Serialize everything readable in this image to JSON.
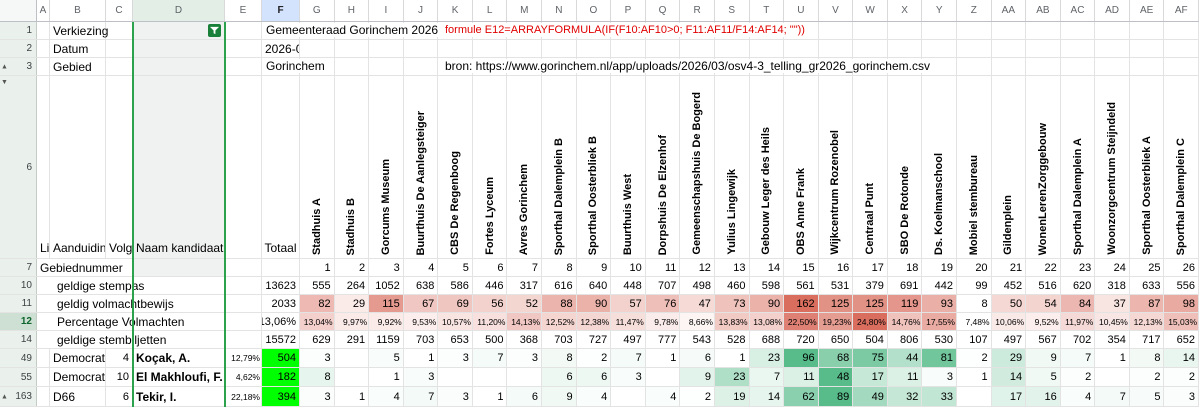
{
  "sheet": {
    "columns": [
      "A",
      "B",
      "C",
      "D",
      "E",
      "F",
      "G",
      "H",
      "I",
      "J",
      "K",
      "L",
      "M",
      "N",
      "O",
      "P",
      "Q",
      "R",
      "S",
      "T",
      "U",
      "V",
      "W",
      "X",
      "Y",
      "Z",
      "AA",
      "AB",
      "AC",
      "AD",
      "AE",
      "AF"
    ],
    "selected_column": "F",
    "filtered_column": "D",
    "selected_cell": "F12",
    "visible_rows": [
      "1",
      "2",
      "3",
      "6",
      "7",
      "10",
      "11",
      "12",
      "14",
      "49",
      "55",
      "163"
    ]
  },
  "meta": {
    "verkiezing_label": "Verkiezing",
    "verkiezing_value": "Gemeenteraad Gorinchem 2026",
    "formula_note": "formule E12=ARRAYFORMULA(IF(F10:AF10>0; F11:AF11/F14:AF14; \"\"))",
    "datum_label": "Datum",
    "datum_value": "2026-0",
    "gebied_label": "Gebied",
    "gebied_value": "Gorinchem",
    "bron_note": "bron: https://www.gorinchem.nl/app/uploads/2026/03/osv4-3_telling_gr2026_gorinchem.csv"
  },
  "header_labels": {
    "lijst": "Li",
    "aanduiding": "Aanduidin",
    "volgnummer": "Volg",
    "naam": "Naam kandidaat",
    "totaal": "Totaal"
  },
  "stations": [
    "Stadhuis A",
    "Stadhuis B",
    "Gorcums Museum",
    "Buurthuis De Aanlegsteiger",
    "CBS De Regenboog",
    "Fortes Lyceum",
    "Avres Gorinchem",
    "Sporthal Dalemplein B",
    "Sporthal Oosterbliek B",
    "Buurthuis West",
    "Dorpshuis De Elzenhof",
    "Gemeenschapshuis De Bogerd",
    "Yulius Lingewijk",
    "Gebouw Leger des Heils",
    "OBS Anne Frank",
    "Wijkcentrum Rozenobel",
    "Centraal Punt",
    "SBO De Rotonde",
    "Ds. Koelmanschool",
    "Mobiel stembureau",
    "Gildenplein",
    "WonenLerenZorggebouw",
    "Sporthal Dalemplein A",
    "Woonzorgcentrum Steijndeld",
    "Sporthal Oosterbliek A",
    "Sporthal Dalemplein C"
  ],
  "gebiednummer": {
    "label": "Gebiednummer",
    "numbers": [
      1,
      2,
      3,
      4,
      5,
      6,
      7,
      8,
      9,
      10,
      11,
      12,
      13,
      14,
      15,
      16,
      17,
      18,
      19,
      20,
      21,
      22,
      23,
      24,
      25,
      26
    ]
  },
  "stat_rows": [
    {
      "row": "10",
      "label": "geldige stempas",
      "total": "13623",
      "heat": "none",
      "small": false,
      "values": [
        555,
        264,
        1052,
        638,
        586,
        446,
        317,
        616,
        640,
        448,
        707,
        498,
        460,
        598,
        561,
        531,
        379,
        691,
        442,
        99,
        452,
        516,
        620,
        318,
        633,
        556
      ]
    },
    {
      "row": "11",
      "label": "geldig volmachtbewijs",
      "total": "2033",
      "heat": "red",
      "small": false,
      "values": [
        82,
        29,
        115,
        67,
        69,
        56,
        52,
        88,
        90,
        57,
        76,
        47,
        73,
        90,
        162,
        125,
        125,
        119,
        93,
        8,
        50,
        54,
        84,
        37,
        87,
        98
      ]
    },
    {
      "row": "12",
      "label": "Percentage Volmachten",
      "total": "13,06%",
      "heat": "red",
      "small": true,
      "selected_total": true,
      "values": [
        "13,04%",
        "9,97%",
        "9,92%",
        "9,53%",
        "10,57%",
        "11,20%",
        "14,13%",
        "12,52%",
        "12,38%",
        "11,47%",
        "9,78%",
        "8,66%",
        "13,83%",
        "13,08%",
        "22,50%",
        "19,23%",
        "24,80%",
        "14,76%",
        "17,55%",
        "7,48%",
        "10,06%",
        "9,52%",
        "11,97%",
        "10,45%",
        "12,13%",
        "15,03%"
      ]
    },
    {
      "row": "14",
      "label": "geldige stembiljetten",
      "total": "15572",
      "heat": "none",
      "small": false,
      "values": [
        629,
        291,
        1159,
        703,
        653,
        500,
        368,
        703,
        727,
        497,
        777,
        543,
        528,
        688,
        720,
        650,
        504,
        806,
        530,
        107,
        497,
        567,
        702,
        354,
        717,
        652
      ]
    }
  ],
  "candidates": [
    {
      "row": "49",
      "party": "Democrate",
      "volgnr": "4",
      "name": "Koçak, A.",
      "pct": "12,79%",
      "total": "504",
      "values": [
        3,
        null,
        5,
        1,
        3,
        7,
        3,
        8,
        2,
        7,
        1,
        6,
        1,
        23,
        96,
        68,
        75,
        44,
        81,
        2,
        29,
        9,
        7,
        1,
        8,
        14
      ]
    },
    {
      "row": "55",
      "party": "Democrate",
      "volgnr": "10",
      "name": "El Makhloufi, F.",
      "pct": "4,62%",
      "total": "182",
      "values": [
        8,
        null,
        1,
        3,
        null,
        null,
        null,
        6,
        6,
        3,
        null,
        9,
        23,
        7,
        11,
        48,
        17,
        11,
        3,
        1,
        14,
        5,
        2,
        null,
        2,
        2
      ]
    },
    {
      "row": "163",
      "party": "D66",
      "volgnr": "6",
      "name": "Tekir, I.",
      "pct": "22,18%",
      "total": "394",
      "values": [
        3,
        1,
        4,
        7,
        3,
        1,
        6,
        9,
        4,
        null,
        4,
        2,
        19,
        14,
        62,
        89,
        49,
        32,
        33,
        null,
        17,
        16,
        4,
        7,
        5,
        3
      ]
    }
  ],
  "colors": {
    "heat_red_max": "#d96e5f",
    "heat_green_max": "#57bb8a",
    "total_green": "#00ff00",
    "selection_blue": "#1a73e8",
    "filter_line_green": "#2ca24c",
    "filter_chip_green": "#188038",
    "note_red": "#e00000"
  }
}
